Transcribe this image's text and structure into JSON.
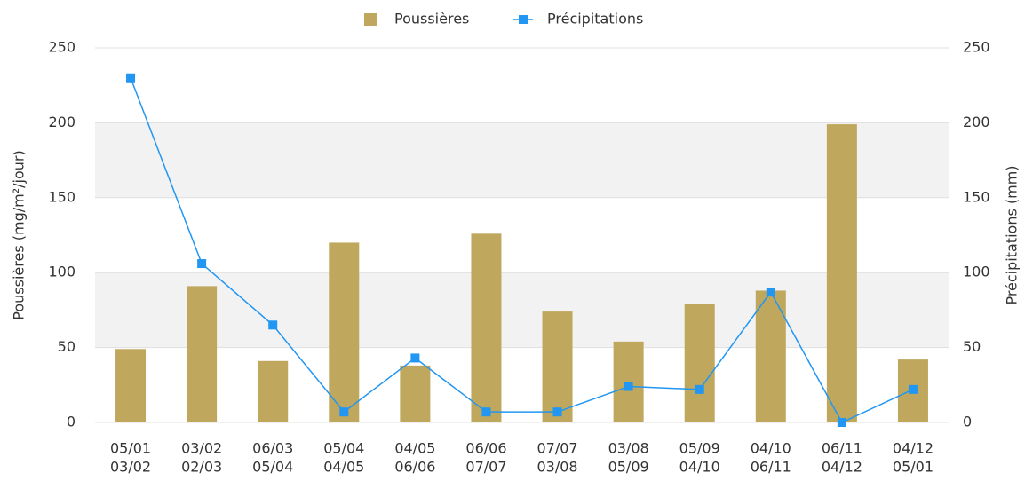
{
  "chart_data": {
    "type": "bar",
    "categories": [
      [
        "05/01",
        "03/02"
      ],
      [
        "03/02",
        "02/03"
      ],
      [
        "06/03",
        "05/04"
      ],
      [
        "05/04",
        "04/05"
      ],
      [
        "04/05",
        "06/06"
      ],
      [
        "06/06",
        "07/07"
      ],
      [
        "07/07",
        "03/08"
      ],
      [
        "03/08",
        "05/09"
      ],
      [
        "05/09",
        "04/10"
      ],
      [
        "04/10",
        "06/11"
      ],
      [
        "06/11",
        "04/12"
      ],
      [
        "04/12",
        "05/01"
      ]
    ],
    "series": [
      {
        "name": "Poussières",
        "type": "bar",
        "color": "#bfa75d",
        "values": [
          49,
          91,
          41,
          120,
          38,
          126,
          74,
          54,
          79,
          88,
          199,
          42
        ]
      },
      {
        "name": "Précipitations",
        "type": "line",
        "axis": "y2",
        "color": "#2196f3",
        "values": [
          230,
          106,
          65,
          7,
          43,
          7,
          7,
          24,
          22,
          87,
          0,
          22
        ]
      }
    ],
    "ylabel": "Poussières (mg/m²/jour)",
    "y2label": "Précipitations (mm)",
    "ylim": [
      0,
      250
    ],
    "yticks": [
      0,
      50,
      100,
      150,
      200,
      250
    ],
    "y2lim": [
      0,
      250
    ],
    "y2ticks": [
      0,
      50,
      100,
      150,
      200,
      250
    ],
    "grid": true,
    "legend": "top"
  }
}
